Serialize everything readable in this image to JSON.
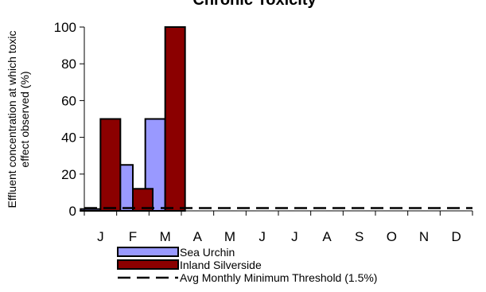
{
  "chart_data": {
    "type": "bar",
    "title": "Chronic Toxicity",
    "ylabel_lines": [
      "Effluent concentration at which toxic",
      "effect observed (%)"
    ],
    "xlabel": "",
    "categories": [
      "J",
      "F",
      "M",
      "A",
      "M",
      "J",
      "J",
      "A",
      "S",
      "O",
      "N",
      "D"
    ],
    "ylim": [
      0,
      100
    ],
    "yticks": [
      0,
      20,
      40,
      60,
      80,
      100
    ],
    "grid": false,
    "legend_position": "bottom",
    "series": [
      {
        "name": "Sea Urchin",
        "color": "#9999ff",
        "values": [
          1,
          25,
          50,
          null,
          null,
          null,
          null,
          null,
          null,
          null,
          null,
          null
        ]
      },
      {
        "name": "Inland Silverside",
        "color": "#8b0000",
        "values": [
          50,
          12,
          100,
          null,
          null,
          null,
          null,
          null,
          null,
          null,
          null,
          null
        ]
      }
    ],
    "reference_line": {
      "name": "Avg Monthly Minimum Threshold (1.5%)",
      "value": 1.5,
      "style": "dashed",
      "color": "#000000"
    }
  }
}
